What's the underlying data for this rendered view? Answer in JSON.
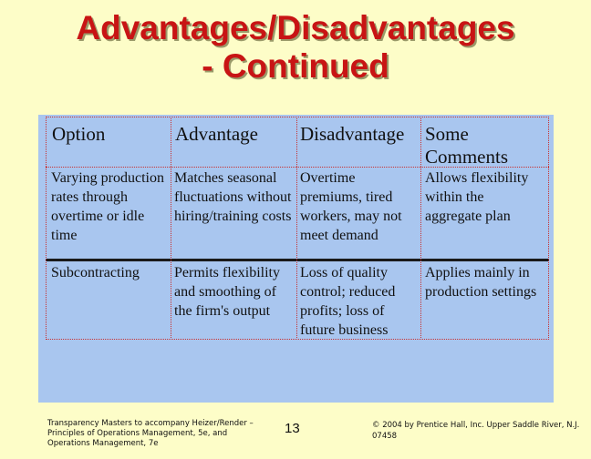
{
  "title": {
    "line1": "Advantages/Disadvantages",
    "line2": "- Continued"
  },
  "table": {
    "headers": [
      "Option",
      "Advantage",
      "Disadvantage",
      "Some Comments"
    ],
    "rows": [
      {
        "option": "Varying production rates through overtime or idle time",
        "advantage": "Matches seasonal fluctuations without hiring/training costs",
        "disadvantage": "Overtime premiums, tired workers, may not meet demand",
        "comments": "Allows flexibility within the aggregate plan"
      },
      {
        "option": "Subcontracting",
        "advantage": "Permits flexibility and smoothing of the firm's output",
        "disadvantage": "Loss of quality control; reduced profits; loss of future business",
        "comments": "Applies mainly in production settings"
      }
    ]
  },
  "footer": {
    "left": "Transparency Masters to accompany Heizer/Render – Principles of Operations Management, 5e, and Operations Management, 7e",
    "page_number": "13",
    "right": "© 2004 by Prentice Hall, Inc. Upper Saddle River, N.J. 07458"
  }
}
